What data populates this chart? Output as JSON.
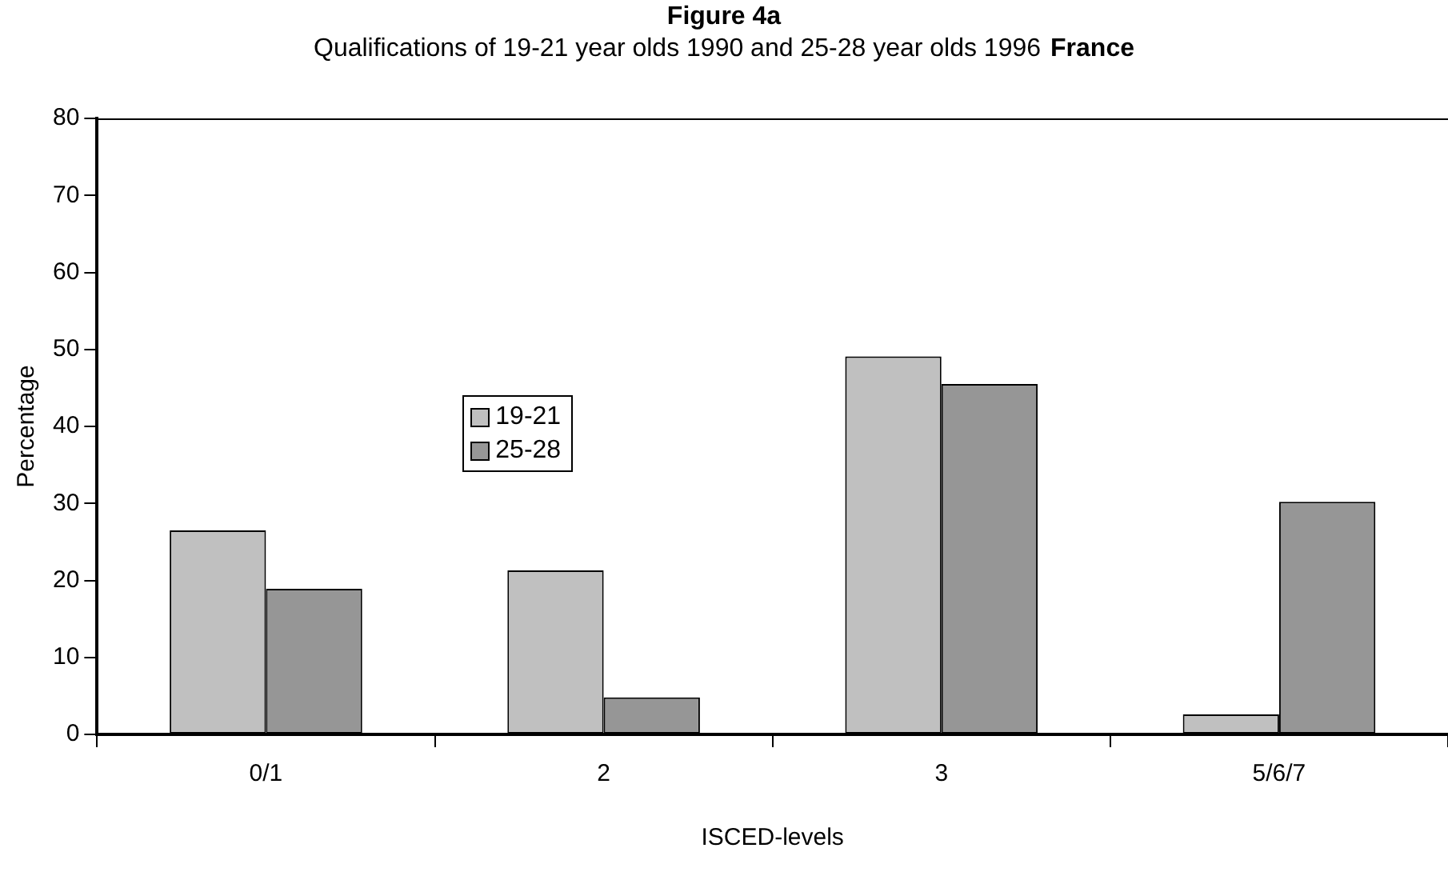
{
  "chart_data": {
    "type": "bar",
    "title": "Figure 4a",
    "subtitle": "Qualifications of 19-21 year olds 1990 and 25-28 year olds 1996",
    "annotations": [
      "France"
    ],
    "xlabel": "ISCED-levels",
    "ylabel": "Percentage",
    "categories": [
      "0/1",
      "2",
      "3",
      "5/6/7"
    ],
    "series": [
      {
        "name": "19-21",
        "color": "#c0c0c0",
        "values": [
          26.5,
          21.3,
          49.1,
          2.6
        ]
      },
      {
        "name": "25-28",
        "color": "#969696",
        "values": [
          18.9,
          4.8,
          45.5,
          30.2
        ]
      }
    ],
    "ylim": [
      0,
      80
    ],
    "yticks": [
      0,
      10,
      20,
      30,
      40,
      50,
      60,
      70,
      80
    ],
    "grid": false,
    "legend": "left"
  }
}
